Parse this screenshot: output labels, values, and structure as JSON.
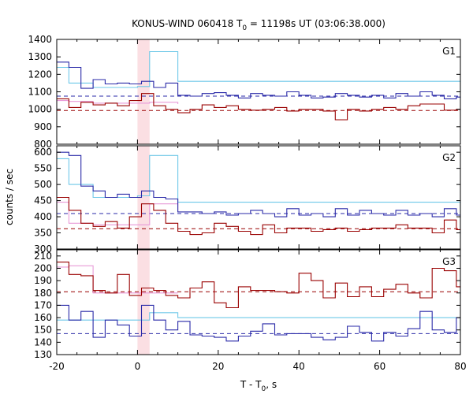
{
  "chart_data": {
    "type": "line",
    "title_main": "KONUS-WIND 060418 T",
    "title_sub": "0",
    "title_rest": " = 11198s UT (03:06:38.000)",
    "xlabel_main": "T - T",
    "xlabel_sub": "0",
    "xlabel_rest": ", s",
    "ylabel": "counts / sec",
    "xlim": [
      -20,
      80
    ],
    "xticks": [
      -20,
      0,
      20,
      40,
      60,
      80
    ],
    "highlight_band": [
      0,
      3
    ],
    "colors": {
      "blue": "#2a2aa8",
      "red": "#990000",
      "cyan": "#6ec8e8",
      "pink": "#e89ad8",
      "band": "#fbdfe3"
    },
    "panels": [
      {
        "name": "G1",
        "ylim": [
          800,
          1400
        ],
        "yticks": [
          800,
          900,
          1000,
          1100,
          1200,
          1300,
          1400
        ],
        "bg_blue": 1075,
        "bg_red": 993,
        "blue_edges": [
          -20,
          -17,
          -14,
          -11,
          -8,
          -5,
          -2,
          1,
          4,
          7,
          10,
          13,
          16,
          19,
          22,
          25,
          28,
          31,
          34,
          37,
          40,
          43,
          46,
          49,
          52,
          55,
          58,
          61,
          64,
          67,
          70,
          73,
          76,
          79,
          80
        ],
        "blue_values": [
          1270,
          1240,
          1120,
          1170,
          1145,
          1150,
          1145,
          1160,
          1125,
          1150,
          1080,
          1075,
          1090,
          1095,
          1080,
          1065,
          1090,
          1080,
          1075,
          1100,
          1080,
          1065,
          1070,
          1090,
          1080,
          1070,
          1080,
          1065,
          1090,
          1075,
          1100,
          1080,
          1060,
          1070
        ],
        "red_edges": [
          -20,
          -17,
          -14,
          -11,
          -8,
          -5,
          -2,
          1,
          4,
          7,
          10,
          13,
          16,
          19,
          22,
          25,
          28,
          31,
          34,
          37,
          40,
          43,
          46,
          49,
          52,
          55,
          58,
          61,
          64,
          67,
          70,
          73,
          76,
          79,
          80
        ],
        "red_values": [
          1060,
          1010,
          1040,
          1025,
          1035,
          1020,
          1050,
          1090,
          1020,
          1000,
          980,
          1000,
          1025,
          1010,
          1020,
          1000,
          995,
          1000,
          1010,
          990,
          1000,
          1000,
          990,
          940,
          1000,
          990,
          1000,
          1010,
          1000,
          1020,
          1030,
          1030,
          995,
          1000
        ],
        "cyan_edges": [
          -20,
          -17,
          -11,
          0,
          3,
          10,
          80
        ],
        "cyan_values": [
          1240,
          1150,
          1125,
          1130,
          1330,
          1160,
          1080
        ],
        "pink_edges": [
          -20,
          -17,
          -11,
          0,
          3,
          10
        ],
        "pink_values": [
          1050,
          1045,
          1035,
          1035,
          1040,
          1030
        ]
      },
      {
        "name": "G2",
        "ylim": [
          300,
          620
        ],
        "yticks": [
          300,
          350,
          400,
          450,
          500,
          550,
          600
        ],
        "bg_blue": 410,
        "bg_red": 363,
        "blue_edges": [
          -20,
          -17,
          -14,
          -11,
          -8,
          -5,
          -2,
          1,
          4,
          7,
          10,
          13,
          16,
          19,
          22,
          25,
          28,
          31,
          34,
          37,
          40,
          43,
          46,
          49,
          52,
          55,
          58,
          61,
          64,
          67,
          70,
          73,
          76,
          79,
          80
        ],
        "blue_values": [
          600,
          590,
          495,
          480,
          460,
          470,
          460,
          480,
          460,
          455,
          415,
          415,
          410,
          415,
          405,
          410,
          420,
          410,
          400,
          425,
          405,
          410,
          400,
          425,
          405,
          420,
          410,
          405,
          420,
          405,
          410,
          400,
          425,
          405
        ],
        "red_edges": [
          -20,
          -17,
          -14,
          -11,
          -8,
          -5,
          -2,
          1,
          4,
          7,
          10,
          13,
          16,
          19,
          22,
          25,
          28,
          31,
          34,
          37,
          40,
          43,
          46,
          49,
          52,
          55,
          58,
          61,
          64,
          67,
          70,
          73,
          76,
          79,
          80
        ],
        "red_values": [
          460,
          420,
          380,
          370,
          385,
          365,
          400,
          440,
          420,
          380,
          355,
          345,
          350,
          380,
          370,
          355,
          345,
          375,
          350,
          365,
          365,
          355,
          360,
          365,
          355,
          360,
          365,
          365,
          375,
          365,
          365,
          350,
          390,
          360
        ],
        "cyan_edges": [
          -20,
          -17,
          -11,
          0,
          3,
          10,
          80
        ],
        "cyan_values": [
          580,
          500,
          460,
          465,
          590,
          445,
          405
        ],
        "pink_edges": [
          -20,
          -17,
          -11,
          0,
          3,
          10
        ],
        "pink_values": [
          445,
          380,
          375,
          375,
          440,
          415
        ]
      },
      {
        "name": "G3",
        "ylim": [
          130,
          215
        ],
        "yticks": [
          130,
          140,
          150,
          160,
          170,
          180,
          190,
          200,
          210
        ],
        "bg_blue": 147,
        "bg_red": 181,
        "blue_edges": [
          -20,
          -17,
          -14,
          -11,
          -8,
          -5,
          -2,
          1,
          4,
          7,
          10,
          13,
          16,
          19,
          22,
          25,
          28,
          31,
          34,
          37,
          40,
          43,
          46,
          49,
          52,
          55,
          58,
          61,
          64,
          67,
          70,
          73,
          76,
          79,
          80
        ],
        "blue_values": [
          170,
          158,
          165,
          144,
          158,
          154,
          145,
          170,
          158,
          150,
          157,
          146,
          145,
          144,
          141,
          145,
          149,
          155,
          146,
          147,
          147,
          144,
          142,
          144,
          153,
          148,
          141,
          148,
          145,
          151,
          165,
          150,
          148,
          160
        ],
        "red_edges": [
          -20,
          -17,
          -14,
          -11,
          -8,
          -5,
          -2,
          1,
          4,
          7,
          10,
          13,
          16,
          19,
          22,
          25,
          28,
          31,
          34,
          37,
          40,
          43,
          46,
          49,
          52,
          55,
          58,
          61,
          64,
          67,
          70,
          73,
          76,
          79,
          80
        ],
        "red_values": [
          205,
          195,
          194,
          182,
          180,
          195,
          178,
          184,
          182,
          178,
          176,
          184,
          189,
          172,
          168,
          185,
          182,
          182,
          181,
          180,
          196,
          190,
          176,
          188,
          177,
          185,
          177,
          183,
          187,
          180,
          176,
          200,
          198,
          185
        ],
        "cyan_edges": [
          -20,
          -17,
          -11,
          0,
          3,
          10,
          80
        ],
        "cyan_values": [
          158,
          158,
          158,
          158,
          164,
          160,
          146
        ],
        "pink_edges": [
          -20,
          -17,
          -11,
          0,
          3,
          10
        ],
        "pink_values": [
          201,
          202,
          180,
          180,
          180,
          180
        ]
      }
    ]
  }
}
